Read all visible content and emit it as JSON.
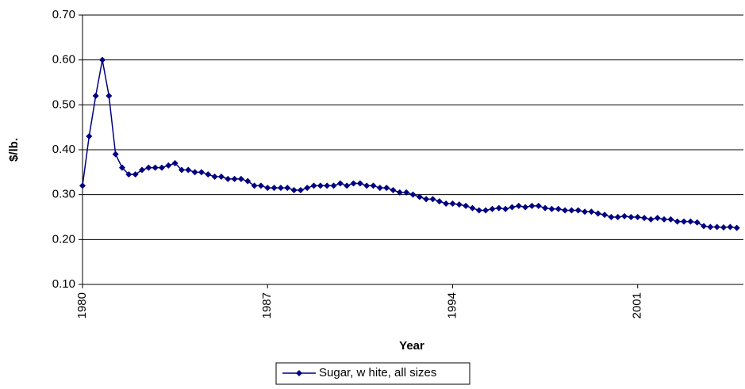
{
  "chart_data": {
    "type": "line",
    "x_label": "Year",
    "y_label": "$/lb.",
    "x": [
      1980,
      1980.25,
      1980.5,
      1980.75,
      1981,
      1981.25,
      1981.5,
      1981.75,
      1982,
      1982.25,
      1982.5,
      1982.75,
      1983,
      1983.25,
      1983.5,
      1983.75,
      1984,
      1984.25,
      1984.5,
      1984.75,
      1985,
      1985.25,
      1985.5,
      1985.75,
      1986,
      1986.25,
      1986.5,
      1986.75,
      1987,
      1987.25,
      1987.5,
      1987.75,
      1988,
      1988.25,
      1988.5,
      1988.75,
      1989,
      1989.25,
      1989.5,
      1989.75,
      1990,
      1990.25,
      1990.5,
      1990.75,
      1991,
      1991.25,
      1991.5,
      1991.75,
      1992,
      1992.25,
      1992.5,
      1992.75,
      1993,
      1993.25,
      1993.5,
      1993.75,
      1994,
      1994.25,
      1994.5,
      1994.75,
      1995,
      1995.25,
      1995.5,
      1995.75,
      1996,
      1996.25,
      1996.5,
      1996.75,
      1997,
      1997.25,
      1997.5,
      1997.75,
      1998,
      1998.25,
      1998.5,
      1998.75,
      1999,
      1999.25,
      1999.5,
      1999.75,
      2000,
      2000.25,
      2000.5,
      2000.75,
      2001,
      2001.25,
      2001.5,
      2001.75,
      2002,
      2002.25,
      2002.5,
      2002.75,
      2003,
      2003.25,
      2003.5,
      2003.75,
      2004,
      2004.25,
      2004.5,
      2004.75
    ],
    "series": [
      {
        "name": "Sugar, w hite, all sizes",
        "color": "#000080",
        "values": [
          0.32,
          0.43,
          0.52,
          0.6,
          0.52,
          0.39,
          0.36,
          0.345,
          0.345,
          0.355,
          0.36,
          0.36,
          0.36,
          0.365,
          0.37,
          0.355,
          0.355,
          0.35,
          0.35,
          0.345,
          0.34,
          0.34,
          0.335,
          0.335,
          0.335,
          0.33,
          0.32,
          0.32,
          0.315,
          0.315,
          0.315,
          0.315,
          0.31,
          0.31,
          0.315,
          0.32,
          0.32,
          0.32,
          0.32,
          0.325,
          0.32,
          0.325,
          0.325,
          0.32,
          0.32,
          0.315,
          0.315,
          0.31,
          0.305,
          0.305,
          0.3,
          0.295,
          0.29,
          0.29,
          0.285,
          0.28,
          0.28,
          0.278,
          0.275,
          0.27,
          0.265,
          0.265,
          0.268,
          0.27,
          0.268,
          0.272,
          0.275,
          0.272,
          0.275,
          0.275,
          0.27,
          0.268,
          0.268,
          0.265,
          0.265,
          0.265,
          0.262,
          0.262,
          0.258,
          0.255,
          0.25,
          0.25,
          0.252,
          0.25,
          0.25,
          0.248,
          0.245,
          0.248,
          0.245,
          0.245,
          0.24,
          0.24,
          0.24,
          0.238,
          0.23,
          0.228,
          0.228,
          0.227,
          0.228,
          0.226
        ]
      }
    ],
    "xlim": [
      1980,
      2005
    ],
    "xticks": [
      1980,
      1987,
      1994,
      2001
    ],
    "ylim": [
      0.1,
      0.7
    ],
    "yticks": [
      {
        "value": 0.1,
        "label": "0.10"
      },
      {
        "value": 0.2,
        "label": "0.20"
      },
      {
        "value": 0.3,
        "label": "0.30"
      },
      {
        "value": 0.4,
        "label": "0.40"
      },
      {
        "value": 0.5,
        "label": "0.50"
      },
      {
        "value": 0.6,
        "label": "0.60"
      },
      {
        "value": 0.7,
        "label": "0.70"
      }
    ],
    "grid": true,
    "legend": "bottom"
  }
}
